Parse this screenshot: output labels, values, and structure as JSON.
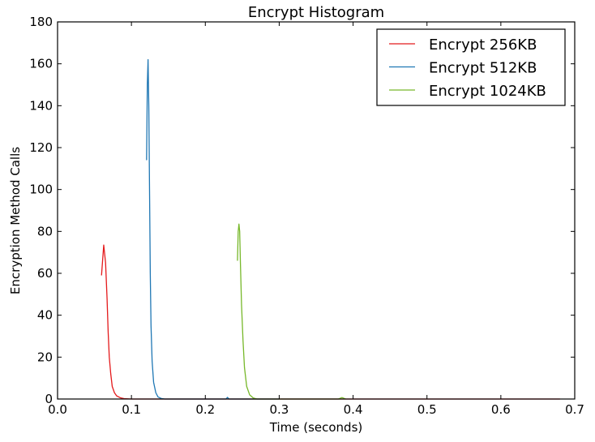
{
  "chart_data": {
    "type": "line",
    "title": "Encrypt Histogram",
    "xlabel": "Time (seconds)",
    "ylabel": "Encryption Method Calls",
    "xlim": [
      0.0,
      0.7
    ],
    "ylim": [
      0,
      180
    ],
    "xticks": [
      "0.0",
      "0.1",
      "0.2",
      "0.3",
      "0.4",
      "0.5",
      "0.6",
      "0.7"
    ],
    "yticks": [
      "0",
      "20",
      "40",
      "60",
      "80",
      "100",
      "120",
      "140",
      "160",
      "180"
    ],
    "grid": false,
    "legend_position": "top-right",
    "series": [
      {
        "name": "Encrypt 256KB",
        "color": "#e41a1c",
        "x": [
          0.0595,
          0.0625,
          0.065,
          0.067,
          0.0685,
          0.07,
          0.072,
          0.074,
          0.077,
          0.08,
          0.085,
          0.09,
          0.1,
          0.2,
          0.4,
          0.6,
          0.68
        ],
        "y": [
          59,
          73.5,
          65,
          48,
          32,
          20,
          12,
          6,
          3,
          1.5,
          0.6,
          0.2,
          0,
          0,
          0,
          0,
          0
        ]
      },
      {
        "name": "Encrypt 512KB",
        "color": "#1f77b4",
        "x": [
          0.1205,
          0.1215,
          0.1225,
          0.1235,
          0.1245,
          0.1255,
          0.1265,
          0.128,
          0.13,
          0.133,
          0.136,
          0.14,
          0.145,
          0.2,
          0.228,
          0.23,
          0.232,
          0.3
        ],
        "y": [
          114,
          150,
          162,
          140,
          100,
          60,
          35,
          18,
          8,
          3,
          1,
          0.3,
          0,
          0,
          0,
          0.8,
          0,
          0
        ]
      },
      {
        "name": "Encrypt 1024KB",
        "color": "#77b82a",
        "x": [
          0.2435,
          0.2445,
          0.2455,
          0.2465,
          0.2475,
          0.249,
          0.251,
          0.253,
          0.256,
          0.26,
          0.265,
          0.27,
          0.3,
          0.38,
          0.385,
          0.39
        ],
        "y": [
          66,
          80,
          83.5,
          80,
          65,
          45,
          28,
          15,
          6,
          2,
          0.5,
          0,
          0,
          0,
          0.7,
          0
        ]
      }
    ]
  }
}
